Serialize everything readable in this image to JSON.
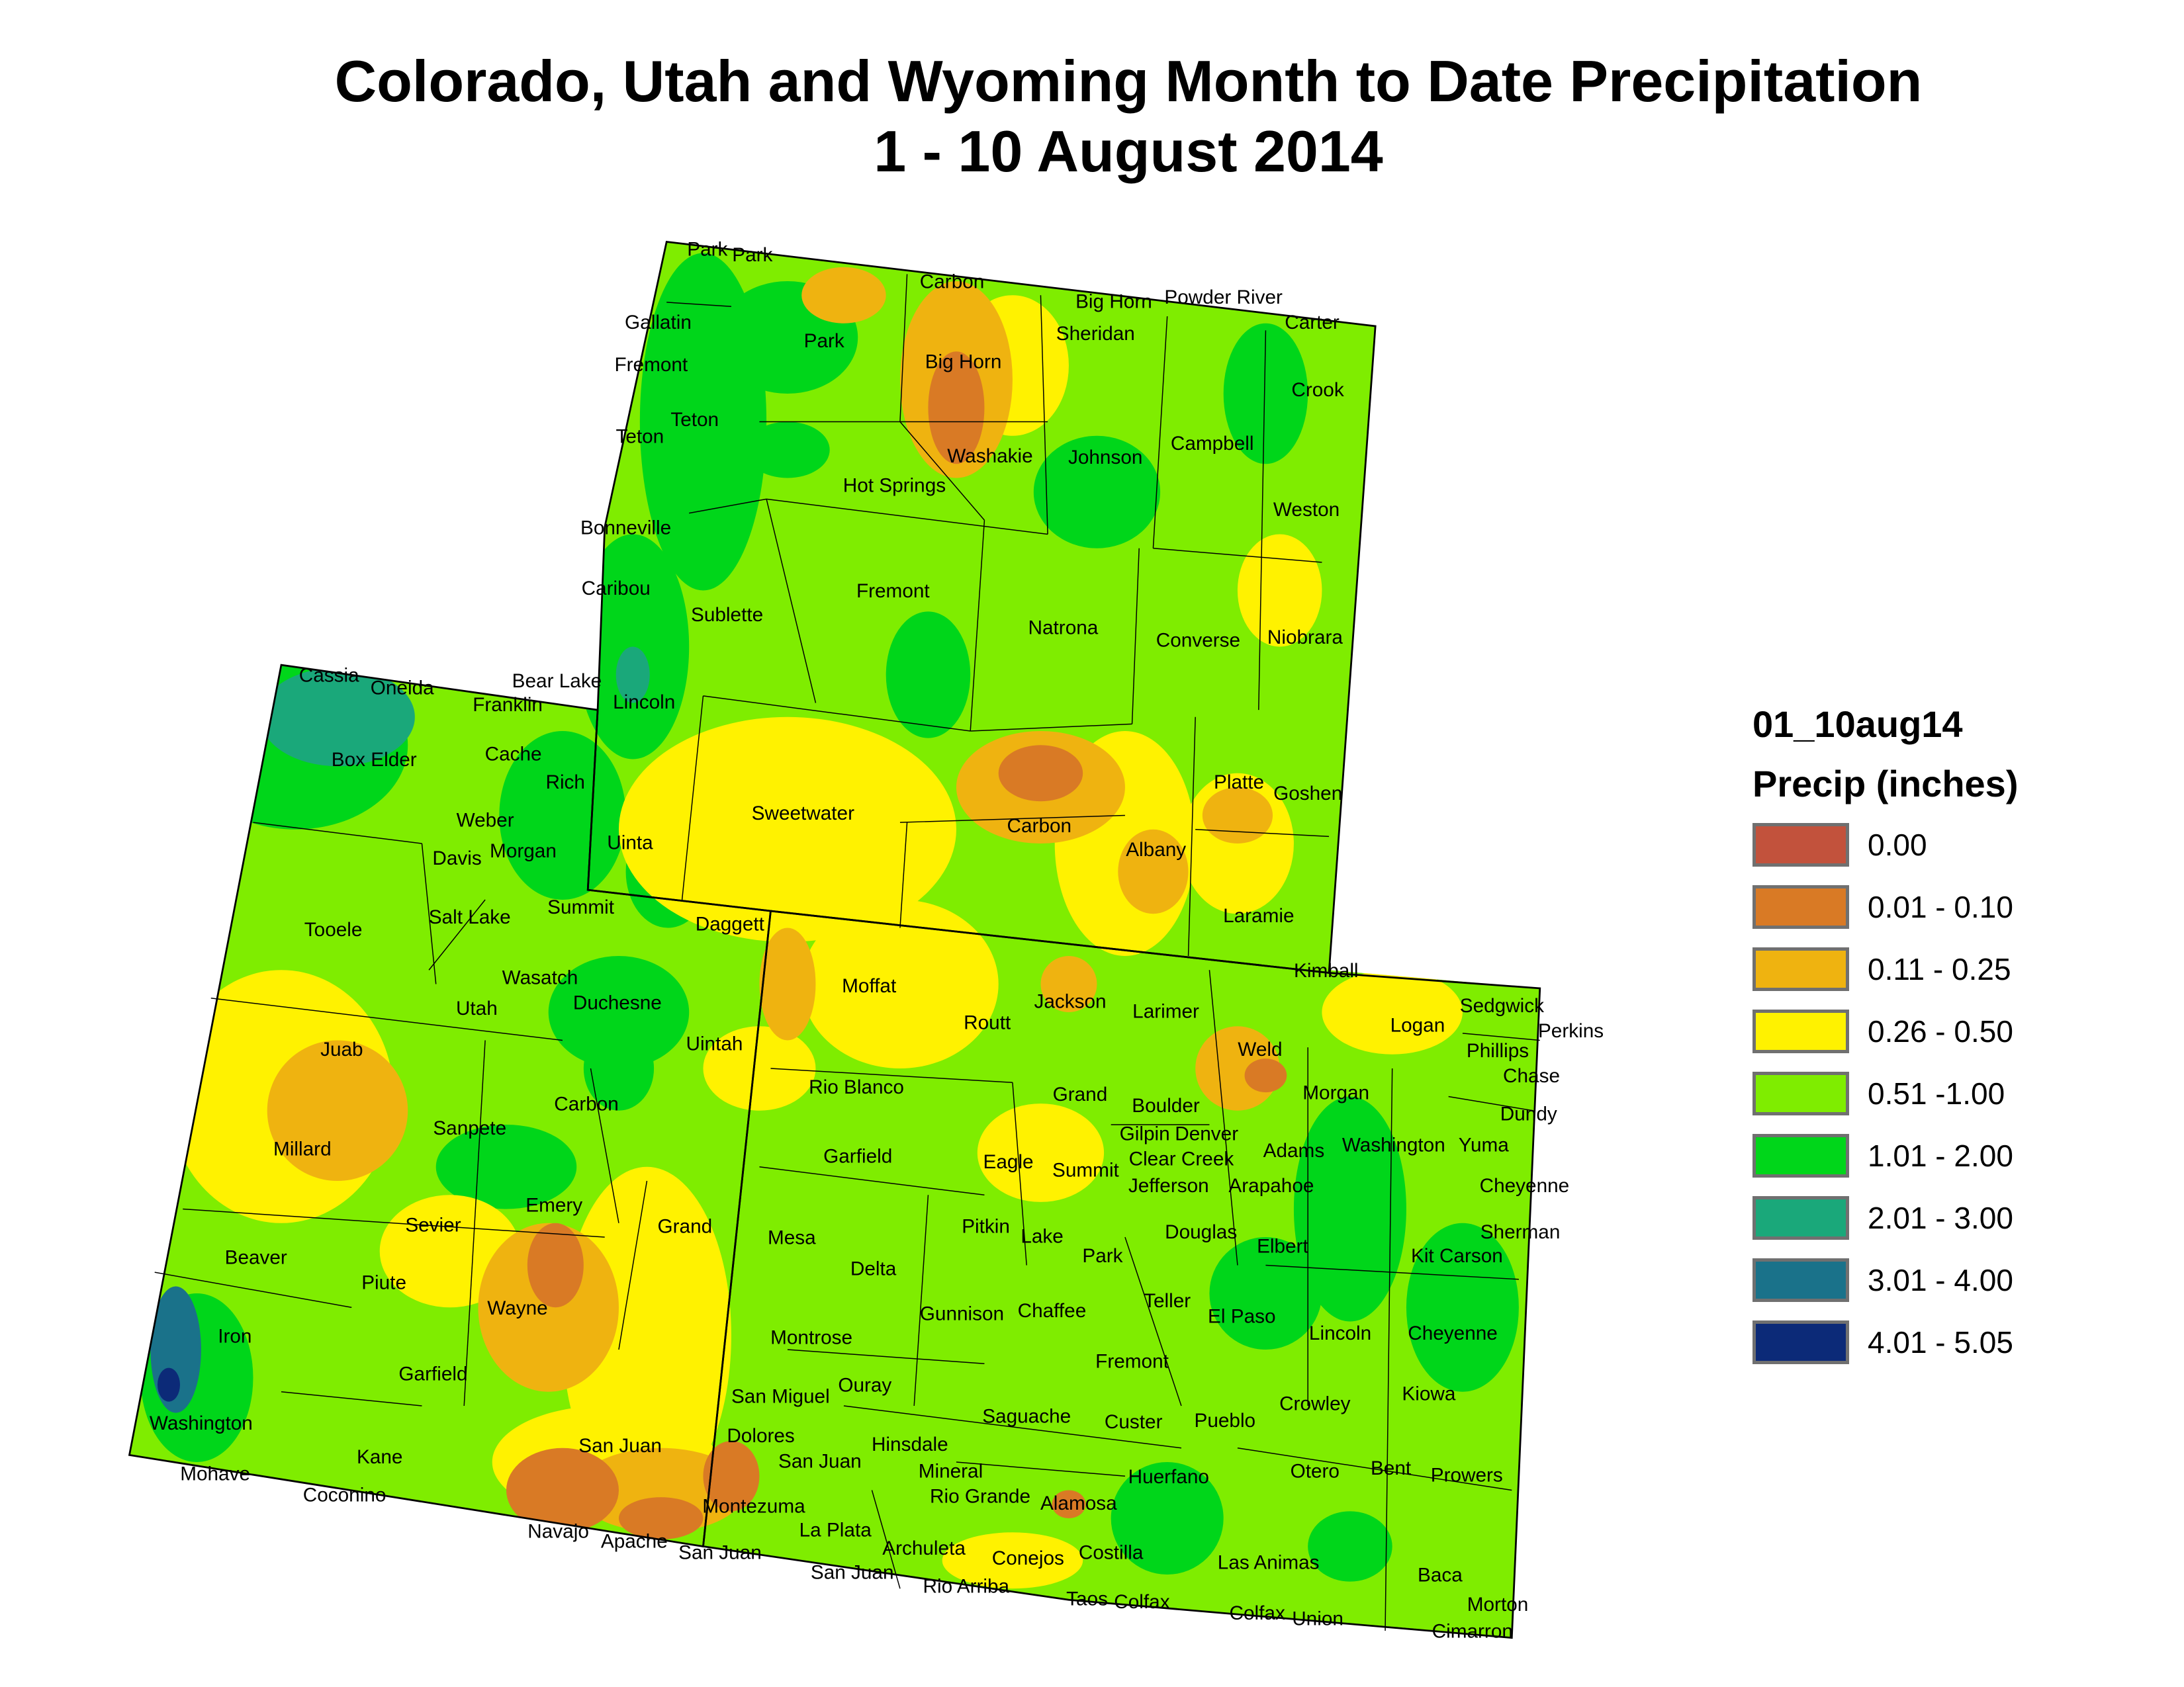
{
  "title": {
    "line1": "Colorado, Utah and Wyoming Month to Date Precipitation",
    "line2": "1 - 10 August 2014"
  },
  "legend": {
    "dataset": "01_10aug14",
    "heading": "Precip (inches)",
    "classes": [
      {
        "label": "0.00",
        "color": "#c2523c"
      },
      {
        "label": "0.01 - 0.10",
        "color": "#d97a25"
      },
      {
        "label": "0.11 - 0.25",
        "color": "#efb310"
      },
      {
        "label": "0.26 - 0.50",
        "color": "#fff200"
      },
      {
        "label": "0.51 -1.00",
        "color": "#7fed00"
      },
      {
        "label": "1.01 - 2.00",
        "color": "#00d61a"
      },
      {
        "label": "2.01 - 3.00",
        "color": "#1aa87a"
      },
      {
        "label": "3.01 - 4.00",
        "color": "#1a728a"
      },
      {
        "label": "4.01 - 5.05",
        "color": "#0c2a78"
      }
    ]
  },
  "states": [
    "Colorado",
    "Utah",
    "Wyoming"
  ],
  "county_labels": [
    "Park",
    "Park",
    "Carbon",
    "Big Horn",
    "Powder River",
    "Gallatin",
    "Carter",
    "Sheridan",
    "Park",
    "Big Horn",
    "Fremont",
    "Crook",
    "Teton",
    "Teton",
    "Campbell",
    "Washakie",
    "Johnson",
    "Hot Springs",
    "Weston",
    "Bonneville",
    "Caribou",
    "Fremont",
    "Sublette",
    "Natrona",
    "Converse",
    "Niobrara",
    "Bear Lake",
    "Cassia",
    "Oneida",
    "Franklin",
    "Lincoln",
    "Box Elder",
    "Cache",
    "Platte",
    "Goshen",
    "Rich",
    "Sweetwater",
    "Weber",
    "Carbon",
    "Uinta",
    "Davis",
    "Morgan",
    "Albany",
    "Summit",
    "Tooele",
    "Salt Lake",
    "Laramie",
    "Daggett",
    "Kimball",
    "Wasatch",
    "Moffat",
    "Sedgwick",
    "Logan",
    "Perkins",
    "Jackson",
    "Larimer",
    "Routt",
    "Utah",
    "Duchesne",
    "Uintah",
    "Juab",
    "Phillips",
    "Weld",
    "Chase",
    "Grand",
    "Rio Blanco",
    "Morgan",
    "Boulder",
    "Carbon",
    "Dundy",
    "Gilpin",
    "Denver",
    "Sanpete",
    "Millard",
    "Washington",
    "Yuma",
    "Adams",
    "Garfield",
    "Eagle",
    "Clear Creek",
    "Summit",
    "Jefferson",
    "Arapahoe",
    "Cheyenne",
    "Emery",
    "Sevier",
    "Grand",
    "Sherman",
    "Mesa",
    "Pitkin",
    "Douglas",
    "Lake",
    "Elbert",
    "Kit Carson",
    "Park",
    "Beaver",
    "Delta",
    "Piute",
    "Teller",
    "Wayne",
    "Gunnison",
    "Chaffee",
    "El Paso",
    "Lincoln",
    "Cheyenne",
    "Montrose",
    "Iron",
    "Fremont",
    "Garfield",
    "Ouray",
    "Kiowa",
    "Crowley",
    "San Miguel",
    "Saguache",
    "Custer",
    "Pueblo",
    "Washington",
    "Dolores",
    "Hinsdale",
    "Kane",
    "San Juan",
    "San Juan",
    "Mineral",
    "Otero",
    "Bent",
    "Prowers",
    "Mohave",
    "Huerfano",
    "Coconino",
    "Rio Grande",
    "Alamosa",
    "Montezuma",
    "La Plata",
    "Navajo",
    "Apache",
    "Archuleta",
    "San Juan",
    "Costilla",
    "Conejos",
    "Las Animas",
    "Baca",
    "San Juan",
    "Rio Arriba",
    "Taos",
    "Colfax",
    "Morton",
    "Colfax",
    "Union",
    "Cimarron"
  ]
}
